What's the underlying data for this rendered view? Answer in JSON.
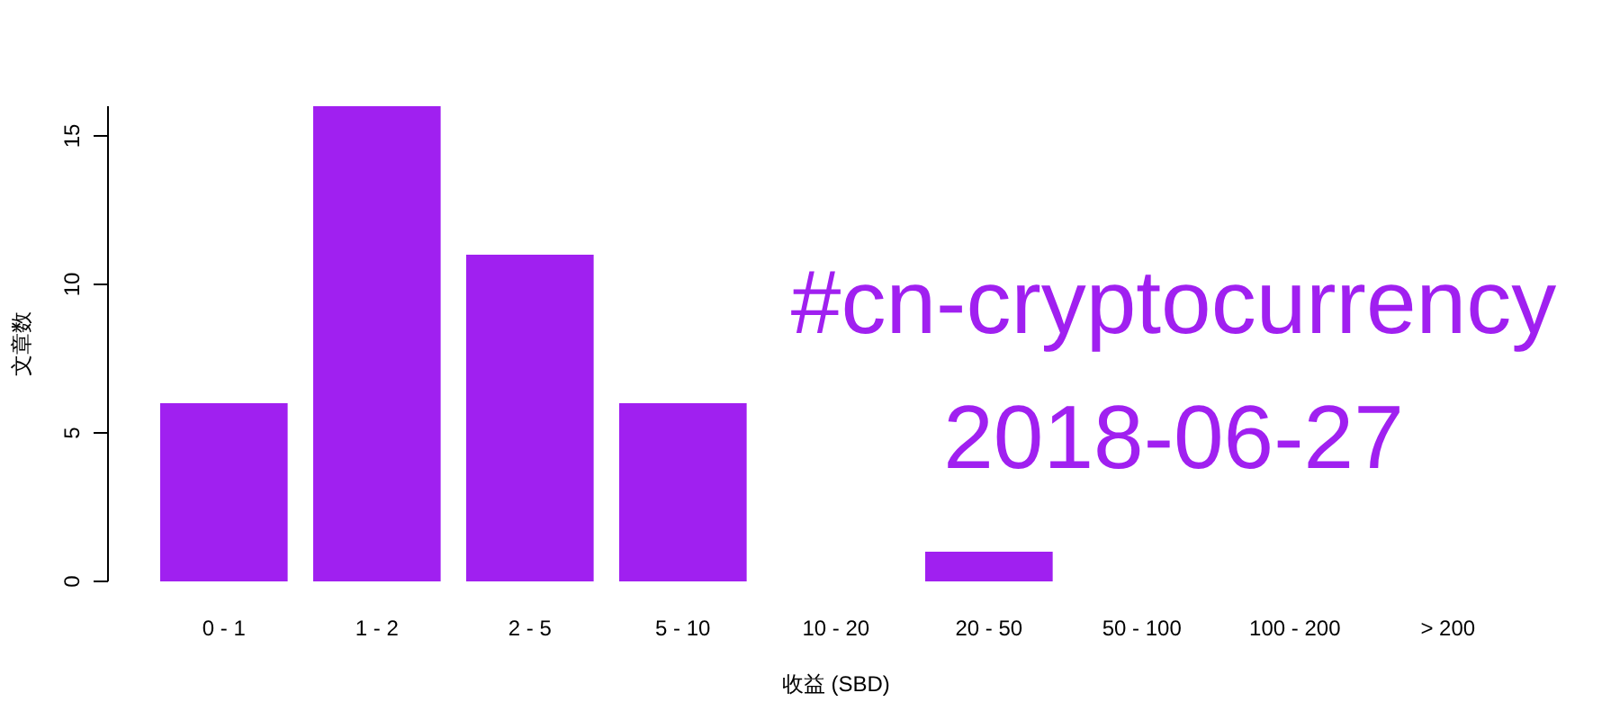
{
  "chart_data": {
    "type": "bar",
    "categories": [
      "0 - 1",
      "1 - 2",
      "2 - 5",
      "5 - 10",
      "10 - 20",
      "20 - 50",
      "50 - 100",
      "100 - 200",
      "> 200"
    ],
    "values": [
      6,
      16,
      11,
      6,
      0,
      1,
      0,
      0,
      0
    ],
    "color": "#a020f0",
    "xlabel": "收益 (SBD)",
    "ylabel": "文章数",
    "ylim": [
      0,
      16
    ],
    "yticks": [
      0,
      5,
      10,
      15
    ],
    "annotations": [
      "#cn-cryptocurrency",
      "2018-06-27"
    ]
  }
}
